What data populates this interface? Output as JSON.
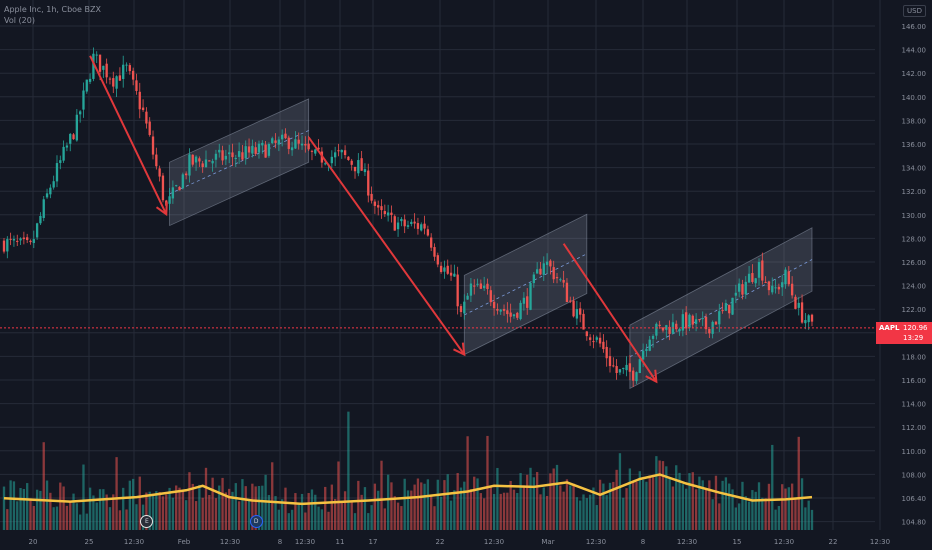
{
  "header": {
    "symbol_line": "Apple Inc, 1h, Cboe BZX",
    "volume_line": "Vol (20)",
    "currency": "USD"
  },
  "price_tag": {
    "symbol": "AAPL",
    "price": "120.96",
    "countdown": "13:29"
  },
  "events": {
    "earnings": "E",
    "dividend": "D"
  },
  "colors": {
    "background": "#131722",
    "grid": "#262b38",
    "up": "#26a69a",
    "down": "#ef5350",
    "arrow": "#e0383b",
    "channel": "#9aa3b5",
    "volume_ma": "#f5c242",
    "price_line": "#f23645"
  },
  "chart_data": {
    "type": "candlestick",
    "title": "Apple Inc, 1h, Cboe BZX",
    "y_axis": {
      "ticks": [
        "146.00",
        "144.00",
        "142.00",
        "140.00",
        "138.00",
        "136.00",
        "134.00",
        "132.00",
        "130.00",
        "128.00",
        "126.00",
        "124.00",
        "122.00",
        "120.00",
        "118.00",
        "116.00",
        "114.00",
        "112.00",
        "110.00",
        "108.00",
        "106.40",
        "104.80"
      ],
      "price_range": [
        103.8,
        146.4
      ]
    },
    "x_axis": {
      "ticks": [
        "20",
        "25",
        "12:30",
        "Feb",
        "12:30",
        "8",
        "12:30",
        "11",
        "17",
        "22",
        "12:30",
        "Mar",
        "12:30",
        "8",
        "12:30",
        "15",
        "12:30",
        "22",
        "12:30"
      ]
    },
    "current_price": 120.96,
    "anchors": [
      {
        "bar": 0,
        "price": 128.5
      },
      {
        "bar": 8,
        "price": 128.0
      },
      {
        "bar": 14,
        "price": 133.5
      },
      {
        "bar": 22,
        "price": 139.0
      },
      {
        "bar": 27,
        "price": 144.8
      },
      {
        "bar": 33,
        "price": 143.0
      },
      {
        "bar": 37,
        "price": 143.8
      },
      {
        "bar": 42,
        "price": 140.0
      },
      {
        "bar": 49,
        "price": 131.5
      },
      {
        "bar": 56,
        "price": 135.5
      },
      {
        "bar": 66,
        "price": 136.0
      },
      {
        "bar": 76,
        "price": 136.5
      },
      {
        "bar": 86,
        "price": 137.5
      },
      {
        "bar": 94,
        "price": 136.0
      },
      {
        "bar": 102,
        "price": 136.2
      },
      {
        "bar": 108,
        "price": 135.0
      },
      {
        "bar": 113,
        "price": 131.0
      },
      {
        "bar": 120,
        "price": 130.0
      },
      {
        "bar": 127,
        "price": 130.0
      },
      {
        "bar": 132,
        "price": 126.5
      },
      {
        "bar": 136,
        "price": 125.0
      },
      {
        "bar": 138,
        "price": 122.0
      },
      {
        "bar": 141,
        "price": 124.5
      },
      {
        "bar": 146,
        "price": 124.0
      },
      {
        "bar": 153,
        "price": 122.0
      },
      {
        "bar": 158,
        "price": 123.5
      },
      {
        "bar": 163,
        "price": 127.0
      },
      {
        "bar": 168,
        "price": 125.0
      },
      {
        "bar": 174,
        "price": 121.5
      },
      {
        "bar": 180,
        "price": 119.5
      },
      {
        "bar": 185,
        "price": 117.0
      },
      {
        "bar": 190,
        "price": 117.0
      },
      {
        "bar": 195,
        "price": 120.5
      },
      {
        "bar": 200,
        "price": 121.0
      },
      {
        "bar": 206,
        "price": 121.5
      },
      {
        "bar": 212,
        "price": 121.0
      },
      {
        "bar": 218,
        "price": 122.5
      },
      {
        "bar": 224,
        "price": 125.0
      },
      {
        "bar": 228,
        "price": 126.5
      },
      {
        "bar": 232,
        "price": 124.0
      },
      {
        "bar": 236,
        "price": 125.5
      },
      {
        "bar": 240,
        "price": 122.5
      },
      {
        "bar": 244,
        "price": 120.96
      }
    ],
    "volume_ma": [
      {
        "bar": 0,
        "value": 105.9
      },
      {
        "bar": 20,
        "value": 105.6
      },
      {
        "bar": 40,
        "value": 106.0
      },
      {
        "bar": 55,
        "value": 106.6
      },
      {
        "bar": 60,
        "value": 107.0
      },
      {
        "bar": 68,
        "value": 106.0
      },
      {
        "bar": 75,
        "value": 105.7
      },
      {
        "bar": 90,
        "value": 105.4
      },
      {
        "bar": 110,
        "value": 105.7
      },
      {
        "bar": 125,
        "value": 106.0
      },
      {
        "bar": 140,
        "value": 106.5
      },
      {
        "bar": 148,
        "value": 107.0
      },
      {
        "bar": 160,
        "value": 106.9
      },
      {
        "bar": 170,
        "value": 107.3
      },
      {
        "bar": 180,
        "value": 106.2
      },
      {
        "bar": 192,
        "value": 107.6
      },
      {
        "bar": 198,
        "value": 108.0
      },
      {
        "bar": 206,
        "value": 107.2
      },
      {
        "bar": 216,
        "value": 106.4
      },
      {
        "bar": 226,
        "value": 105.7
      },
      {
        "bar": 236,
        "value": 105.8
      },
      {
        "bar": 244,
        "value": 106.0
      }
    ],
    "trend_arrows": [
      {
        "from": {
          "bar": 26,
          "price": 145.0
        },
        "to": {
          "bar": 49,
          "price": 131.0
        }
      },
      {
        "from": {
          "bar": 92,
          "price": 137.8
        },
        "to": {
          "bar": 139,
          "price": 118.6
        }
      },
      {
        "from": {
          "bar": 169,
          "price": 128.4
        },
        "to": {
          "bar": 197,
          "price": 116.2
        }
      }
    ],
    "channels": [
      {
        "start": {
          "bar": 50,
          "price": 135.6
        },
        "end": {
          "bar": 92,
          "price": 141.2
        },
        "width": 5.6
      },
      {
        "start": {
          "bar": 139,
          "price": 125.6
        },
        "end": {
          "bar": 176,
          "price": 131.0
        },
        "width": 7.0
      },
      {
        "start": {
          "bar": 189,
          "price": 121.2
        },
        "end": {
          "bar": 244,
          "price": 129.8
        },
        "width": 5.6
      }
    ],
    "events": [
      {
        "type": "earnings",
        "bar": 43
      },
      {
        "type": "dividend",
        "bar": 76
      }
    ]
  }
}
